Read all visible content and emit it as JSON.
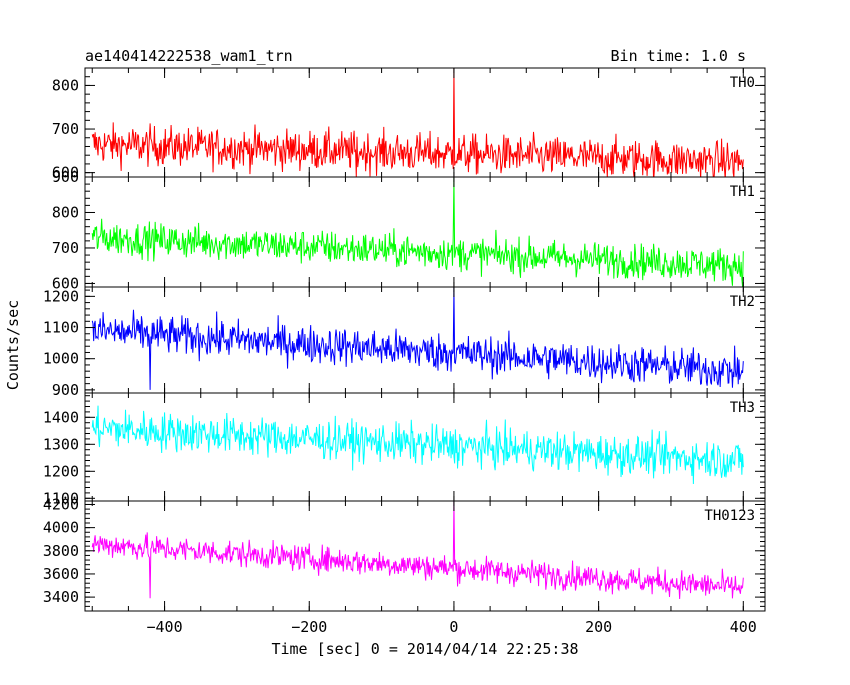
{
  "chart_data": {
    "type": "line",
    "title": "ae140414222538_wam1_trn",
    "bin_time": "Bin time: 1.0 s",
    "xlabel": "Time [sec] 0 = 2014/04/14 22:25:38",
    "ylabel": "Counts/sec",
    "xlim": [
      -510,
      430
    ],
    "x_ticks": [
      -400,
      -200,
      0,
      200,
      400
    ],
    "x_tick_labels": [
      "−400",
      "−200",
      "0",
      "200",
      "400"
    ],
    "x_range_data": [
      -500,
      400
    ],
    "grid": false,
    "panels": [
      {
        "name": "TH0",
        "color": "#ff0000",
        "ylim": [
          590,
          840
        ],
        "y_ticks": [
          600,
          700,
          800
        ],
        "y_tick_labels": [
          "600",
          "700",
          "800"
        ],
        "trend_start": 665,
        "trend_end": 625,
        "noise": 28,
        "spike": {
          "x": 0,
          "y": 840
        },
        "dips": [
          {
            "x": -135,
            "y": 590
          }
        ]
      },
      {
        "name": "TH1",
        "color": "#00ff00",
        "ylim": [
          590,
          900
        ],
        "y_ticks": [
          600,
          700,
          800,
          900
        ],
        "y_tick_labels": [
          "600",
          "700",
          "800",
          "900"
        ],
        "trend_start": 730,
        "trend_end": 650,
        "noise": 30,
        "spike": {
          "x": 0,
          "y": 900
        },
        "dips": []
      },
      {
        "name": "TH2",
        "color": "#0000ff",
        "ylim": [
          890,
          1230
        ],
        "y_ticks": [
          900,
          1000,
          1100,
          1200
        ],
        "y_tick_labels": [
          "900",
          "1000",
          "1100",
          "1200"
        ],
        "trend_start": 1090,
        "trend_end": 960,
        "noise": 38,
        "spike": {
          "x": 0,
          "y": 1230
        },
        "dips": [
          {
            "x": -420,
            "y": 900
          }
        ]
      },
      {
        "name": "TH3",
        "color": "#00ffff",
        "ylim": [
          1090,
          1490
        ],
        "y_ticks": [
          1100,
          1200,
          1300,
          1400
        ],
        "y_tick_labels": [
          "1100",
          "1200",
          "1300",
          "1400"
        ],
        "trend_start": 1360,
        "trend_end": 1240,
        "noise": 45,
        "spike": null,
        "dips": []
      },
      {
        "name": "TH0123",
        "color": "#ff00ff",
        "ylim": [
          3280,
          4230
        ],
        "y_ticks": [
          3400,
          3600,
          3800,
          4000,
          4200
        ],
        "y_tick_labels": [
          "3400",
          "3600",
          "3800",
          "4000",
          "4200"
        ],
        "trend_start": 3860,
        "trend_end": 3480,
        "noise": 70,
        "spike": {
          "x": 0,
          "y": 4230
        },
        "dips": [
          {
            "x": -420,
            "y": 3390
          }
        ]
      }
    ]
  }
}
